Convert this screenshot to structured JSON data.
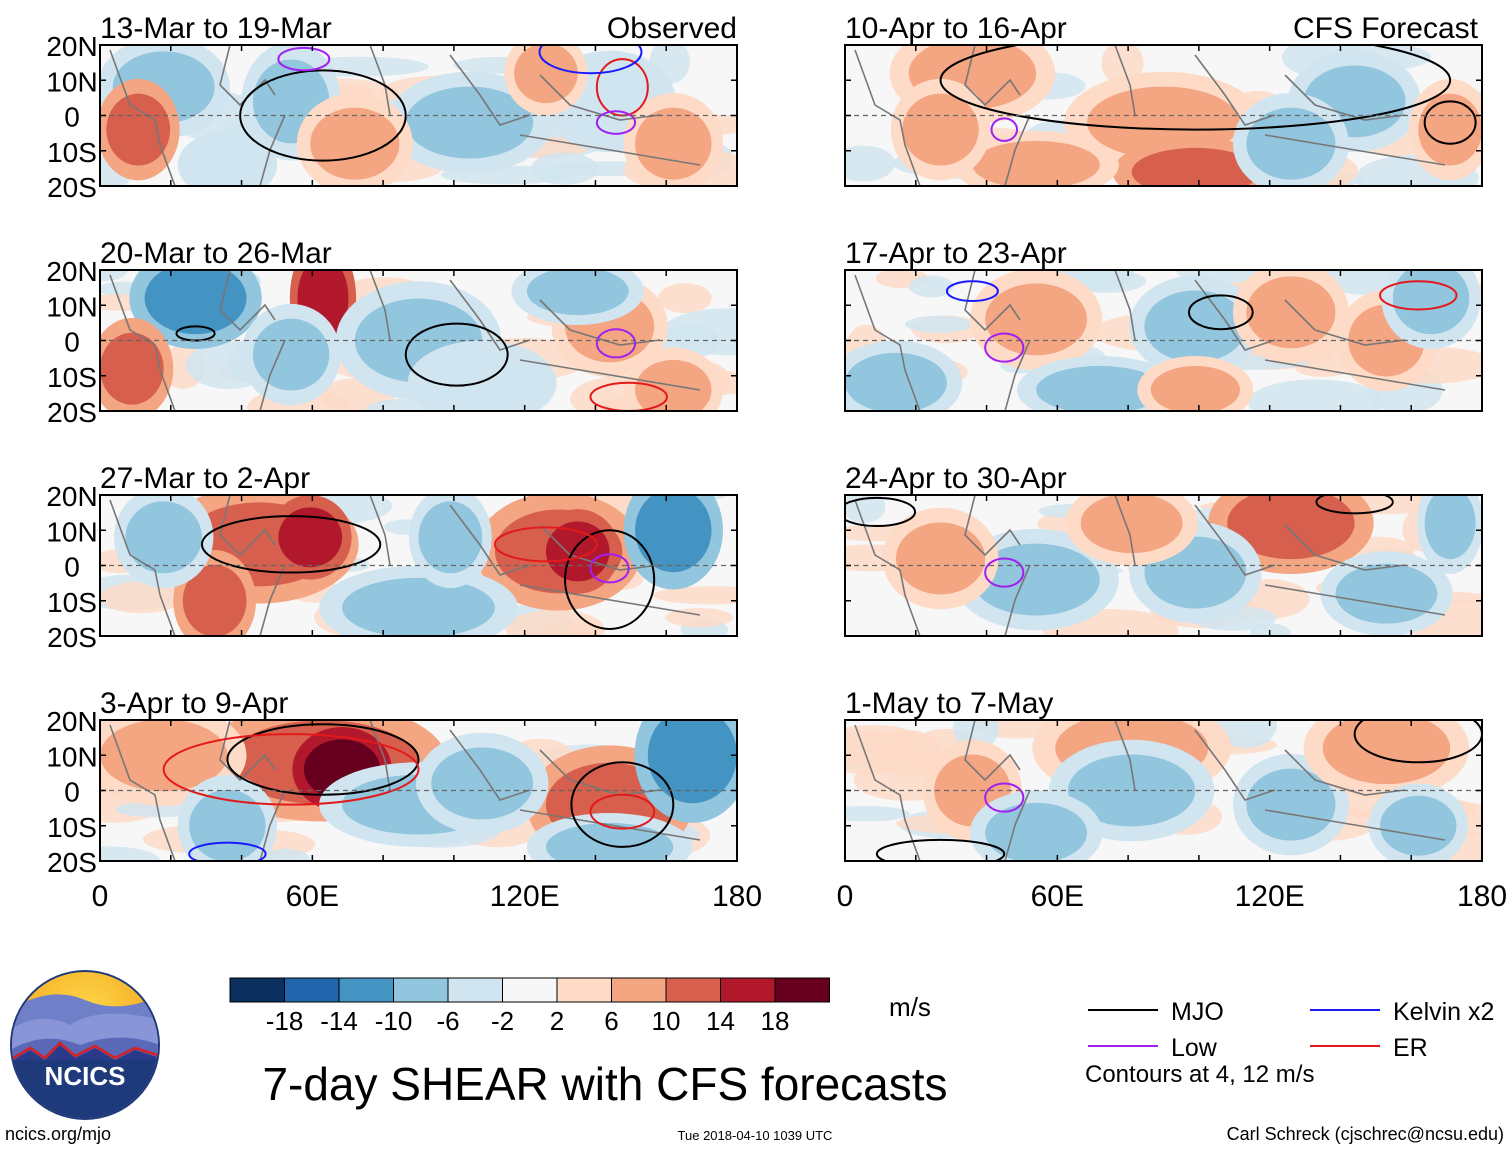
{
  "title": "7-day SHEAR with CFS forecasts",
  "units": "m/s",
  "observed_label": "Observed",
  "forecast_label": "CFS Forecast",
  "lat_labels": [
    "20N",
    "10N",
    "0",
    "10S",
    "20S"
  ],
  "lon_labels": [
    "0",
    "60E",
    "120E",
    "180"
  ],
  "left_panels": [
    {
      "label": "13-Mar to 19-Mar"
    },
    {
      "label": "20-Mar to 26-Mar"
    },
    {
      "label": "27-Mar to 2-Apr"
    },
    {
      "label": "3-Apr to 9-Apr"
    }
  ],
  "right_panels": [
    {
      "label": "10-Apr to 16-Apr"
    },
    {
      "label": "17-Apr to 23-Apr"
    },
    {
      "label": "24-Apr to 30-Apr"
    },
    {
      "label": "1-May to 7-May"
    }
  ],
  "colorbar": {
    "ticks": [
      "-18",
      "-14",
      "-10",
      "-6",
      "-2",
      "2",
      "6",
      "10",
      "14",
      "18"
    ],
    "colors": [
      "#0b3060",
      "#2166ac",
      "#4393c3",
      "#92c5de",
      "#d1e5f0",
      "#f7f7f7",
      "#fddbc7",
      "#f4a582",
      "#d6604d",
      "#b2182b",
      "#67001f"
    ]
  },
  "legend": [
    {
      "label": "MJO",
      "color": "#000000"
    },
    {
      "label": "Kelvin x2",
      "color": "#1a1aff"
    },
    {
      "label": "Low",
      "color": "#a020f0"
    },
    {
      "label": "ER",
      "color": "#e31a1c"
    }
  ],
  "contour_note": "Contours at 4, 12 m/s",
  "logo_text": "NCICS",
  "url": "ncics.org/mjo",
  "timestamp": "Tue 2018-04-10 1039 UTC",
  "credit": "Carl Schreck (cjschrec@ncsu.edu)"
}
